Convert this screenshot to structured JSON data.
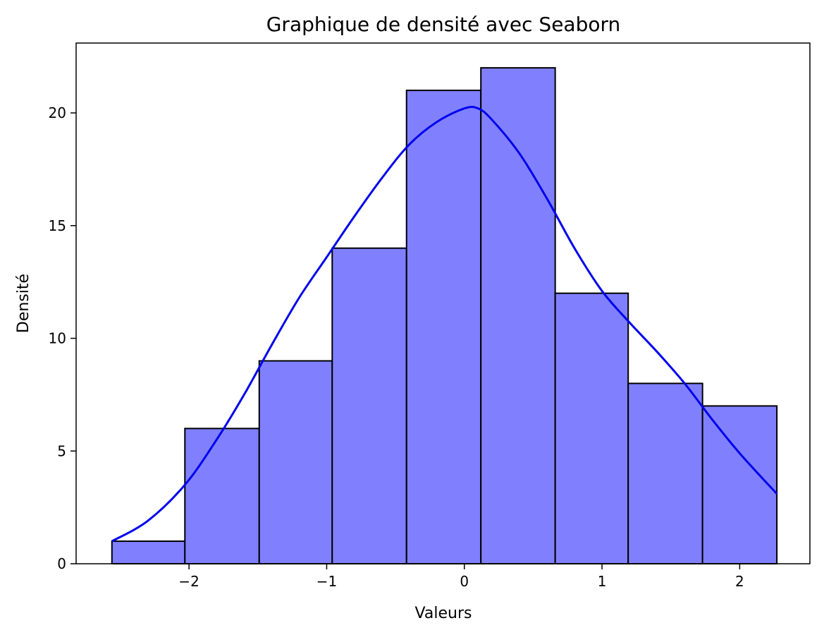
{
  "chart_data": {
    "type": "bar",
    "title": "Graphique de densité avec Seaborn",
    "xlabel": "Valeurs",
    "ylabel": "Densité",
    "xlim": [
      -2.82,
      2.51
    ],
    "ylim": [
      0,
      23.1
    ],
    "grid": false,
    "legend": "none",
    "bar_color": "#8080ff",
    "edge_color": "#000000",
    "kde_color": "#0000ee",
    "bins": [
      {
        "x0": -2.56,
        "x1": -2.03,
        "count": 1
      },
      {
        "x0": -2.03,
        "x1": -1.49,
        "count": 6
      },
      {
        "x0": -1.49,
        "x1": -0.96,
        "count": 9
      },
      {
        "x0": -0.96,
        "x1": -0.42,
        "count": 14
      },
      {
        "x0": -0.42,
        "x1": 0.12,
        "count": 21
      },
      {
        "x0": 0.12,
        "x1": 0.66,
        "count": 22
      },
      {
        "x0": 0.66,
        "x1": 1.19,
        "count": 12
      },
      {
        "x0": 1.19,
        "x1": 1.73,
        "count": 8
      },
      {
        "x0": 1.73,
        "x1": 2.27,
        "count": 7
      }
    ],
    "kde": {
      "x": [
        -2.56,
        -2.3,
        -2.03,
        -1.8,
        -1.6,
        -1.4,
        -1.2,
        -1.0,
        -0.8,
        -0.6,
        -0.4,
        -0.2,
        0.0,
        0.1,
        0.2,
        0.4,
        0.6,
        0.8,
        1.0,
        1.2,
        1.4,
        1.6,
        1.8,
        2.0,
        2.27
      ],
      "y": [
        1.0,
        1.9,
        3.5,
        5.5,
        7.5,
        9.7,
        11.8,
        13.6,
        15.4,
        17.1,
        18.6,
        19.6,
        20.2,
        20.2,
        19.7,
        18.2,
        16.2,
        14.0,
        12.1,
        10.7,
        9.4,
        8.0,
        6.4,
        4.9,
        3.1
      ]
    },
    "x_ticks": [
      -2,
      -1,
      0,
      1,
      2
    ],
    "x_tick_labels": [
      "−2",
      "−1",
      "0",
      "1",
      "2"
    ],
    "y_ticks": [
      0,
      5,
      10,
      15,
      20
    ],
    "y_tick_labels": [
      "0",
      "5",
      "10",
      "15",
      "20"
    ]
  }
}
